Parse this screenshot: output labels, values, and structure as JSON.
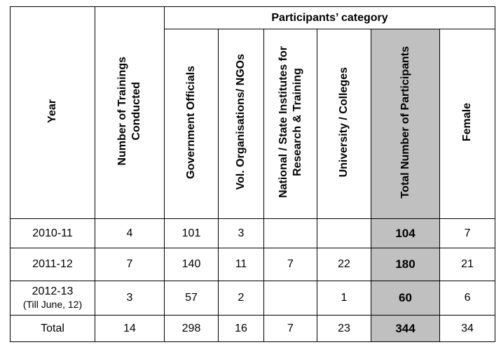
{
  "headers": {
    "year": "Year",
    "trainings": [
      "Number of Trainings",
      "Conducted"
    ],
    "participants_category": "Participants’ category",
    "govt": "Government Officials",
    "vol": "Vol. Organisations/ NGOs",
    "national": [
      "National / State Institutes for",
      "Research  & Training"
    ],
    "university": "University /  Colleges",
    "total": "Total Number of Participants",
    "female": "Female"
  },
  "rows": [
    {
      "year": "2010-11",
      "year_note": "",
      "trainings": "4",
      "govt": "101",
      "vol": "3",
      "national": "",
      "university": "",
      "total": "104",
      "female": "7"
    },
    {
      "year": "2011-12",
      "year_note": "",
      "trainings": "7",
      "govt": "140",
      "vol": "11",
      "national": "7",
      "university": "22",
      "total": "180",
      "female": "21"
    },
    {
      "year": "2012-13",
      "year_note": "(Till June, 12)",
      "trainings": "3",
      "govt": "57",
      "vol": "2",
      "national": "",
      "university": "1",
      "total": "60",
      "female": "6"
    },
    {
      "year": "Total",
      "year_note": "",
      "trainings": "14",
      "govt": "298",
      "vol": "16",
      "national": "7",
      "university": "23",
      "total": "344",
      "female": "34"
    }
  ],
  "colors": {
    "total_column_bg": "#c0c0c0",
    "border": "#000000"
  }
}
